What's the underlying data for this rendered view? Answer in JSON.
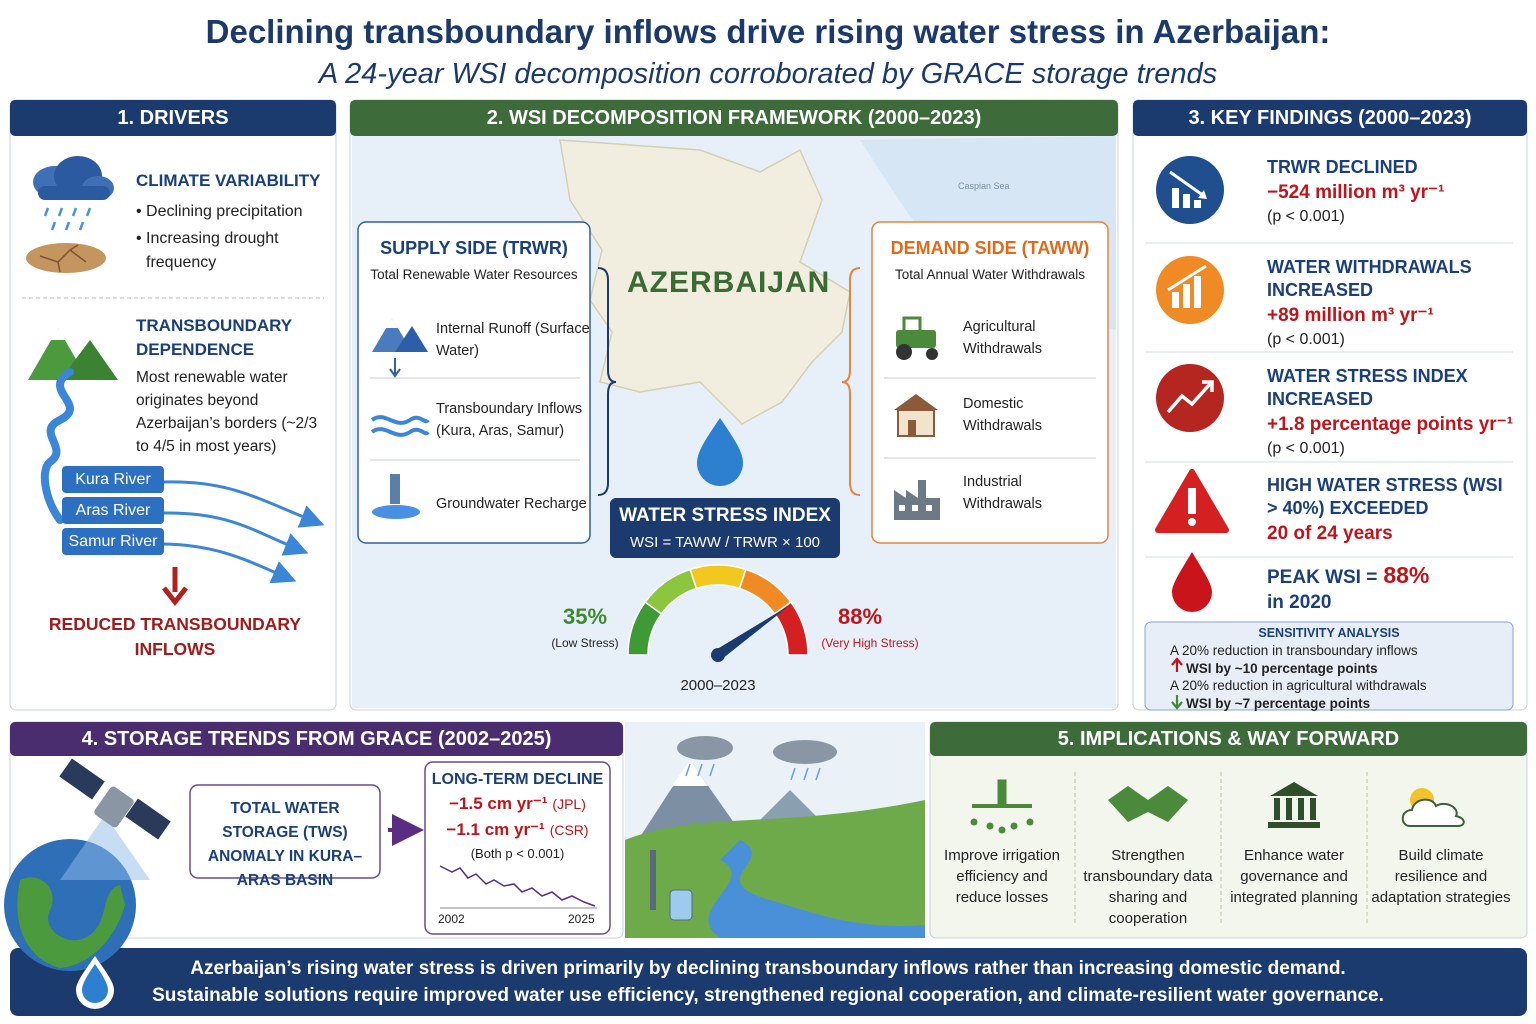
{
  "header": {
    "title": "Declining transboundary inflows drive rising water stress in Azerbaijan:",
    "subtitle": "A 24-year WSI decomposition corroborated by GRACE storage trends"
  },
  "drivers": {
    "heading": "1. DRIVERS",
    "climate": {
      "title": "CLIMATE VARIABILITY",
      "bullets": [
        "• Declining precipitation",
        "• Increasing drought frequency"
      ]
    },
    "transboundary": {
      "title": "TRANSBOUNDARY DEPENDENCE",
      "text": "Most renewable water originates beyond Azerbaijan’s borders (~2/3 to 4/5 in most years)"
    },
    "rivers": [
      "Kura River",
      "Aras River",
      "Samur River"
    ],
    "result": "REDUCED TRANSBOUNDARY INFLOWS"
  },
  "framework": {
    "heading": "2. WSI DECOMPOSITION FRAMEWORK (2000–2023)",
    "map_label": "AZERBAIJAN",
    "sea_label": "Caspian Sea",
    "supply": {
      "title": "SUPPLY SIDE (TRWR)",
      "subtitle": "Total Renewable Water Resources",
      "items": [
        "Internal Runoff (Surface Water)",
        "Transboundary Inflows (Kura, Aras, Samur)",
        "Groundwater Recharge"
      ]
    },
    "demand": {
      "title": "DEMAND SIDE (TAWW)",
      "subtitle": "Total Annual Water Withdrawals",
      "items": [
        "Agricultural Withdrawals",
        "Domestic Withdrawals",
        "Industrial Withdrawals"
      ]
    },
    "index": {
      "title": "WATER STRESS INDEX",
      "formula": "WSI = TAWW / TRWR × 100"
    },
    "gauge": {
      "low": "35%",
      "low_label": "(Low Stress)",
      "high": "88%",
      "high_label": "(Very High Stress)",
      "period": "2000–2023"
    }
  },
  "findings": {
    "heading": "3. KEY FINDINGS (2000–2023)",
    "items": [
      {
        "title": "TRWR DECLINED",
        "value": "−524 million m³ yr⁻¹",
        "note": "(p < 0.001)"
      },
      {
        "title": "WATER WITHDRAWALS INCREASED",
        "value": "+89 million m³ yr⁻¹",
        "note": "(p < 0.001)"
      },
      {
        "title": "WATER STRESS INDEX INCREASED",
        "value": "+1.8 percentage points yr⁻¹",
        "note": "(p < 0.001)"
      },
      {
        "title": "HIGH WATER STRESS (WSI > 40%) EXCEEDED",
        "value": "20 of 24 years"
      },
      {
        "title": "PEAK WSI =",
        "value": "88%",
        "note": "in 2020"
      }
    ],
    "sensitivity": {
      "title": "SENSITIVITY ANALYSIS",
      "lines": [
        "A 20% reduction in transboundary inflows",
        "WSI by ~10 percentage points",
        "A 20% reduction in agricultural withdrawals",
        "WSI by ~7 percentage points"
      ]
    }
  },
  "storage": {
    "heading": "4. STORAGE TRENDS FROM GRACE (2002–2025)",
    "tws": "TOTAL WATER STORAGE (TWS) ANOMALY IN KURA–ARAS BASIN",
    "decline": {
      "title": "LONG-TERM DECLINE",
      "trends": [
        {
          "value": "−1.5 cm yr⁻¹",
          "source": "(JPL)"
        },
        {
          "value": "−1.1 cm yr⁻¹",
          "source": "(CSR)"
        }
      ],
      "note": "(Both p < 0.001)",
      "start": "2002",
      "end": "2025"
    }
  },
  "implications": {
    "heading": "5. IMPLICATIONS & WAY FORWARD",
    "items": [
      "Improve irrigation efficiency and reduce losses",
      "Strengthen transboundary data sharing and cooperation",
      "Enhance water governance and integrated planning",
      "Build climate resilience and adaptation strategies"
    ]
  },
  "footer": {
    "lines": [
      "Azerbaijan’s rising water stress is driven primarily by declining transboundary inflows rather than increasing domestic demand.",
      "Sustainable solutions require improved water use efficiency, strengthened regional cooperation, and climate-resilient water governance."
    ]
  }
}
